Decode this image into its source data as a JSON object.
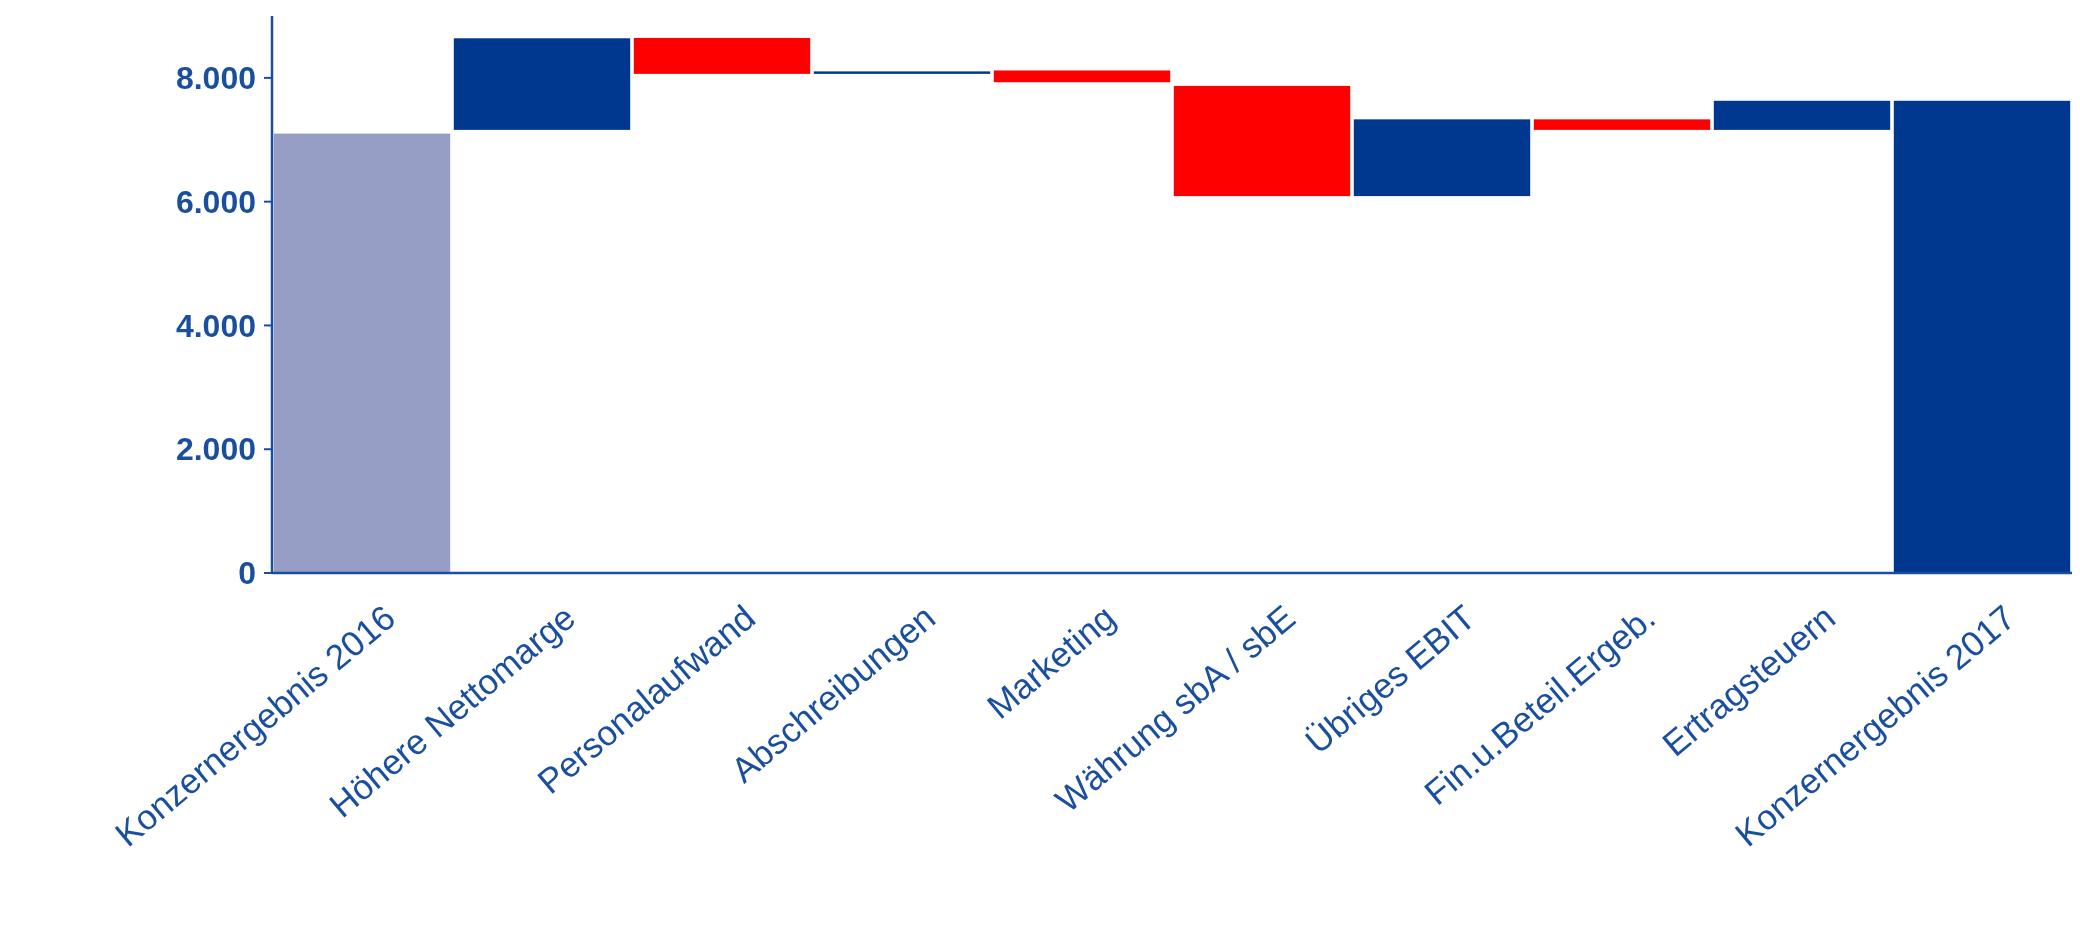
{
  "chart_data": {
    "type": "bar",
    "categories": [
      "Konzernergebnis 2016",
      "Höhere Nettomarge",
      "Personalaufwand",
      "Abschreibungen",
      "Marketing",
      "Währung sbA / sbE",
      "Übriges EBIT",
      "Fin.u.Beteil.Ergeb.",
      "Ertragsteuern",
      "Konzernergebnis 2017"
    ],
    "values": [
      7100,
      1480,
      -580,
      40,
      -190,
      -1780,
      1240,
      -170,
      470,
      7630
    ],
    "base": [
      0,
      7160,
      8645,
      8065,
      8120,
      7870,
      6090,
      7330,
      7160,
      0
    ],
    "colors": [
      "#969ec6",
      "#00378f",
      "#ff0000",
      "#00378f",
      "#ff0000",
      "#ff0000",
      "#00378f",
      "#ff0000",
      "#00378f",
      "#00378f"
    ],
    "ylim": [
      0,
      9000
    ],
    "yticks": [
      {
        "value": 0,
        "label": "0"
      },
      {
        "value": 2000,
        "label": "2.000"
      },
      {
        "value": 4000,
        "label": "4.000"
      },
      {
        "value": 6000,
        "label": "6.000"
      },
      {
        "value": 8000,
        "label": "8.000"
      }
    ],
    "grid": false
  }
}
